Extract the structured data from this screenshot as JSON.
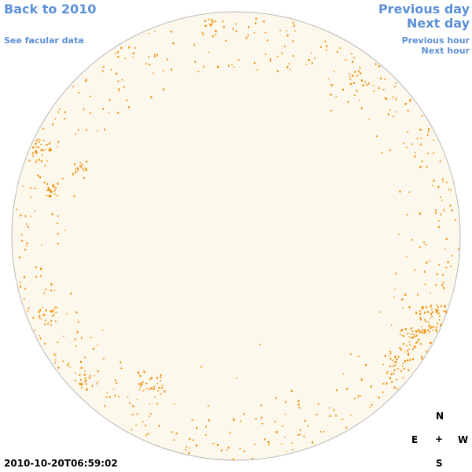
{
  "nav": {
    "back_label": "Back to 2010",
    "facular_label": "See facular data",
    "prev_day_label": "Previous day",
    "next_day_label": "Next day",
    "prev_hour_label": "Previous hour",
    "next_hour_label": "Next hour"
  },
  "timestamp": "2010-10-20T06:59:02",
  "compass": {
    "north": "N",
    "south": "S",
    "east": "E",
    "west": "W",
    "center": "+"
  },
  "colors": {
    "disk_fill": "#fdf8ec",
    "disk_outline": "#b8b8b8",
    "facula": "#f08a00",
    "link": "#5b8fd6"
  }
}
